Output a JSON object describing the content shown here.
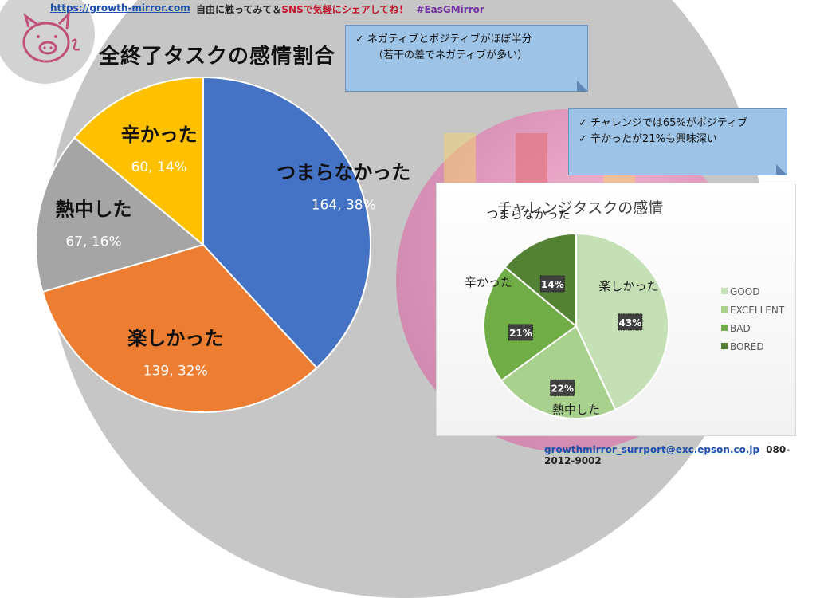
{
  "header": {
    "url": "https://growth-mirror.com",
    "tagline_prefix": "自由に触ってみて＆",
    "tagline_accent": "SNSで気軽にシェアしてね！",
    "hashtag": "#EasGMirror"
  },
  "footer": {
    "email": "growthmirror_surrport@exc.epson.co.jp",
    "phone": "080-2012-9002"
  },
  "callouts": [
    {
      "lines": [
        "✓ ネガティブとポジティブがほぼ半分",
        "（若干の差でネガティブが多い）"
      ]
    },
    {
      "lines": [
        "✓ チャレンジでは65%がポジティブ",
        "✓ 辛かったが21%も興味深い"
      ]
    }
  ],
  "chart_data": [
    {
      "type": "pie",
      "title": "全終了タスクの感情割合",
      "categories": [
        "つまらなかった",
        "楽しかった",
        "熱中した",
        "辛かった"
      ],
      "values": [
        164,
        139,
        67,
        60
      ],
      "percent_labels": [
        "38%",
        "32%",
        "16%",
        "14%"
      ],
      "colors": [
        "#4472c4",
        "#ed7d31",
        "#a5a5a5",
        "#ffc000"
      ],
      "start": "12 o'clock, clockwise"
    },
    {
      "type": "pie",
      "title": "チャレンジタスクの感情",
      "categories": [
        "楽しかった",
        "熱中した",
        "辛かった",
        "つまらなかった"
      ],
      "legend": [
        "GOOD",
        "EXCELLENT",
        "BAD",
        "BORED"
      ],
      "values": [
        43,
        22,
        21,
        14
      ],
      "percent_labels": [
        "43%",
        "22%",
        "21%",
        "14%"
      ],
      "colors": [
        "#c5e0b4",
        "#a9d18e",
        "#70ad47",
        "#548235"
      ],
      "legend_position": "right",
      "start": "12 o'clock, clockwise"
    }
  ]
}
